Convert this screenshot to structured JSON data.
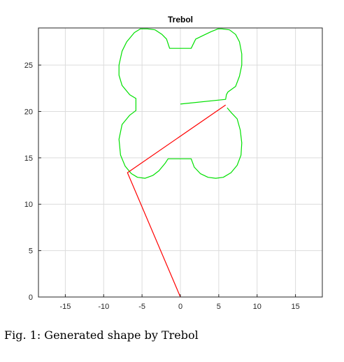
{
  "chart_data": {
    "type": "line",
    "title": "Trebol",
    "xlabel": "",
    "ylabel": "",
    "xlim": [
      -18.5,
      18.5
    ],
    "ylim": [
      0,
      29
    ],
    "xticks": [
      -15,
      -10,
      -5,
      0,
      5,
      10,
      15
    ],
    "yticks": [
      0,
      5,
      10,
      15,
      20,
      25
    ],
    "grid": true,
    "legend": "none",
    "series": [
      {
        "color": "#00e000",
        "x": [
          0.0,
          5.9,
          6.0,
          6.2,
          7.2,
          7.7,
          8.0,
          8.0,
          7.7,
          7.2,
          6.4,
          5.4,
          4.9,
          4.0,
          3.0,
          2.0,
          1.4,
          -1.4,
          -1.8,
          -2.4,
          -3.3,
          -4.3,
          -5.2,
          -6.0,
          -7.0,
          -7.6,
          -8.0,
          -8.0,
          -7.6,
          -6.6,
          -5.8,
          -5.8,
          -6.6,
          -7.6,
          -8.0,
          -7.8,
          -7.2,
          -6.4,
          -5.6,
          -4.6,
          -3.6,
          -2.8,
          -2.0,
          -1.6,
          0.0,
          1.4,
          1.8,
          2.6,
          3.6,
          4.6,
          5.6,
          6.6,
          7.4,
          7.9,
          8.0,
          7.8,
          7.4,
          6.6,
          6.1
        ],
        "y": [
          20.8,
          21.3,
          21.8,
          22.1,
          22.7,
          23.8,
          25.0,
          26.2,
          27.5,
          28.3,
          28.8,
          28.9,
          28.9,
          28.6,
          28.2,
          27.8,
          26.8,
          26.8,
          27.8,
          28.3,
          28.8,
          28.9,
          28.9,
          28.5,
          27.5,
          26.5,
          25.0,
          23.9,
          22.8,
          21.8,
          21.4,
          20.1,
          19.6,
          18.6,
          17.0,
          15.3,
          14.1,
          13.3,
          12.9,
          12.8,
          13.1,
          13.6,
          14.4,
          14.9,
          14.9,
          14.9,
          14.0,
          13.3,
          12.9,
          12.8,
          12.9,
          13.4,
          14.2,
          15.3,
          16.6,
          18.0,
          19.2,
          19.9,
          20.4
        ]
      },
      {
        "color": "#ff0000",
        "x": [
          0.0,
          -6.9,
          5.9
        ],
        "y": [
          0.0,
          13.4,
          20.7
        ]
      }
    ]
  },
  "caption": "Fig. 1: Generated shape by Trebol"
}
